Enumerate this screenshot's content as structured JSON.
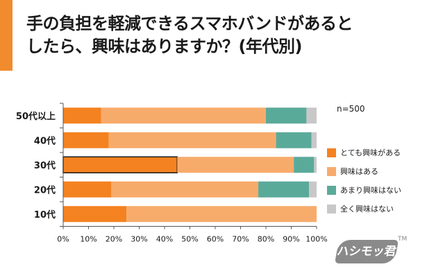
{
  "title_lines": [
    "手の負担を軽減できるスマホバンドがあると",
    "したら、興味はありますか？(年代別)"
  ],
  "note": "n=500",
  "logo_text": "ハシモッ君",
  "logo_tm": "TM",
  "colors": {
    "accent": "#f28a2e",
    "series": [
      "#f48220",
      "#f7ab6b",
      "#5aaa9a",
      "#c8c8c8"
    ]
  },
  "chart_data": {
    "type": "bar",
    "orientation": "horizontal",
    "stacked": "percent",
    "categories": [
      "50代以上",
      "40代",
      "30代",
      "20代",
      "10代"
    ],
    "series": [
      {
        "name": "とても興味がある",
        "values": [
          15,
          18,
          45,
          19,
          25
        ]
      },
      {
        "name": "興味はある",
        "values": [
          65,
          66,
          46,
          58,
          75
        ]
      },
      {
        "name": "あまり興味はない",
        "values": [
          16,
          14,
          8,
          20,
          0
        ]
      },
      {
        "name": "全く興味はない",
        "values": [
          4,
          2,
          1,
          3,
          0
        ]
      }
    ],
    "highlight": {
      "category": "30代",
      "series": "とても興味がある"
    },
    "xlim": [
      0,
      100
    ],
    "xticks": [
      "0%",
      "10%",
      "20%",
      "30%",
      "40%",
      "50%",
      "60%",
      "70%",
      "80%",
      "90%",
      "100%"
    ],
    "grid": false,
    "legend": "right"
  }
}
